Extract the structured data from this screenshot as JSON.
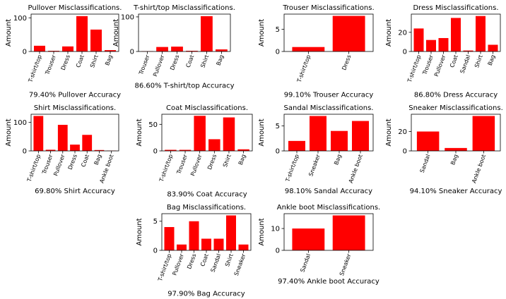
{
  "figure": {
    "bar_color": "#ff0000",
    "ylabel": "Amount",
    "accuracy_suffix": "Accuracy"
  },
  "chart_data": [
    {
      "type": "bar",
      "title": "Pullover Misclassifications.",
      "categories": [
        "T-shirt/top",
        "Trouser",
        "Dress",
        "Coat",
        "Shirt",
        "Bag"
      ],
      "values": [
        17,
        2,
        15,
        105,
        65,
        4
      ],
      "ylabel": "Amount",
      "yticks": [
        0,
        100
      ],
      "ylim": [
        0,
        111
      ],
      "accuracy": "79.40%  Pullover Accuracy"
    },
    {
      "type": "bar",
      "title": "T-shirt/top Misclassifications.",
      "categories": [
        "Trouser",
        "Pullover",
        "Dress",
        "Coat",
        "Shirt",
        "Bag"
      ],
      "values": [
        1,
        13,
        14,
        2,
        102,
        6
      ],
      "ylabel": "Amount",
      "yticks": [
        0,
        100
      ],
      "ylim": [
        0,
        108
      ],
      "accuracy": "86.60%  T-shirt/top Accuracy"
    },
    {
      "type": "bar",
      "title": "Trouser Misclassifications.",
      "categories": [
        "T-shirt/top",
        "Dress"
      ],
      "values": [
        1,
        8
      ],
      "ylabel": "Amount",
      "yticks": [
        0,
        5
      ],
      "ylim": [
        0,
        8.4
      ],
      "accuracy": "99.10%  Trouser Accuracy"
    },
    {
      "type": "bar",
      "title": "Dress Misclassifications.",
      "categories": [
        "T-shirt/top",
        "Trouser",
        "Pullover",
        "Coat",
        "Sandal",
        "Shirt",
        "Bag"
      ],
      "values": [
        24,
        12,
        14,
        35,
        1,
        37,
        7
      ],
      "ylabel": "Amount",
      "yticks": [
        0,
        20
      ],
      "ylim": [
        0,
        39
      ],
      "accuracy": "86.80%  Dress Accuracy"
    },
    {
      "type": "bar",
      "title": "Shirt Misclassifications.",
      "categories": [
        "T-shirt/top",
        "Trouser",
        "Pullover",
        "Dress",
        "Coat",
        "Bag",
        "Ankle boot"
      ],
      "values": [
        122,
        4,
        91,
        22,
        56,
        3,
        1
      ],
      "ylabel": "Amount",
      "yticks": [
        0,
        100
      ],
      "ylim": [
        0,
        128
      ],
      "accuracy": "69.80%  Shirt Accuracy"
    },
    {
      "type": "bar",
      "title": "Coat Misclassifications.",
      "categories": [
        "T-shirt/top",
        "Trouser",
        "Pullover",
        "Dress",
        "Shirt",
        "Bag"
      ],
      "values": [
        2,
        2,
        66,
        22,
        63,
        3
      ],
      "ylabel": "Amount",
      "yticks": [
        0,
        50
      ],
      "ylim": [
        0,
        69
      ],
      "accuracy": "83.90%  Coat Accuracy"
    },
    {
      "type": "bar",
      "title": "Sandal Misclassifications.",
      "categories": [
        "T-shirt/top",
        "Sneaker",
        "Bag",
        "Ankle boot"
      ],
      "values": [
        2,
        7,
        4,
        6
      ],
      "ylabel": "Amount",
      "yticks": [
        0,
        5
      ],
      "ylim": [
        0,
        7.35
      ],
      "accuracy": "98.10%  Sandal Accuracy"
    },
    {
      "type": "bar",
      "title": "Sneaker Misclassifications.",
      "categories": [
        "Sandal",
        "Bag",
        "Ankle boot"
      ],
      "values": [
        20,
        3,
        36
      ],
      "ylabel": "Amount",
      "yticks": [
        0,
        20
      ],
      "ylim": [
        0,
        37.8
      ],
      "accuracy": "94.10%  Sneaker Accuracy"
    },
    {
      "type": "bar",
      "title": "Bag Misclassifications.",
      "categories": [
        "T-shirt/top",
        "Pullover",
        "Dress",
        "Coat",
        "Sandal",
        "Shirt",
        "Sneaker"
      ],
      "values": [
        4,
        1,
        5,
        2,
        2,
        6,
        1
      ],
      "ylabel": "Amount",
      "yticks": [
        0,
        5
      ],
      "ylim": [
        0,
        6.3
      ],
      "accuracy": "97.90%  Bag Accuracy"
    },
    {
      "type": "bar",
      "title": "Ankle boot Misclassifications.",
      "categories": [
        "Sandal",
        "Sneaker"
      ],
      "values": [
        10,
        16
      ],
      "ylabel": "Amount",
      "yticks": [
        0,
        10
      ],
      "ylim": [
        0,
        16.8
      ],
      "accuracy": "97.40%  Ankle boot Accuracy"
    }
  ]
}
